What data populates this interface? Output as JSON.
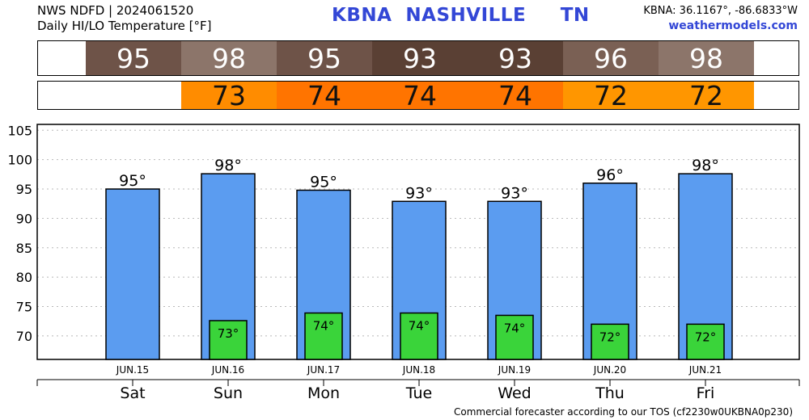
{
  "header": {
    "line1": "NWS NDFD | 2024061520",
    "line2": "Daily HI/LO Temperature [°F]",
    "station": "KBNA  NASHVILLE     TN",
    "coords": "KBNA: 36.1167°, -86.6833°W",
    "site": "weathermodels.com"
  },
  "footer": "Commercial forecaster according to our TOS (cf2230w0UKBNA0p230)",
  "hi_strip": [
    {
      "value": "95",
      "color": "#6e5348"
    },
    {
      "value": "98",
      "color": "#8c756a"
    },
    {
      "value": "95",
      "color": "#6e5348"
    },
    {
      "value": "93",
      "color": "#5a4034"
    },
    {
      "value": "93",
      "color": "#5a4034"
    },
    {
      "value": "96",
      "color": "#7a6054"
    },
    {
      "value": "98",
      "color": "#8c756a"
    }
  ],
  "lo_strip": [
    {
      "value": "",
      "color": "#ffffff"
    },
    {
      "value": "73",
      "color": "#ff8c00"
    },
    {
      "value": "74",
      "color": "#ff7400"
    },
    {
      "value": "74",
      "color": "#ff7400"
    },
    {
      "value": "74",
      "color": "#ff7400"
    },
    {
      "value": "72",
      "color": "#ff9600"
    },
    {
      "value": "72",
      "color": "#ff9600"
    }
  ],
  "chart_data": {
    "type": "bar",
    "categories": [
      "Sat",
      "Sun",
      "Mon",
      "Tue",
      "Wed",
      "Thu",
      "Fri"
    ],
    "dates": [
      "JUN.15",
      "JUN.16",
      "JUN.17",
      "JUN.18",
      "JUN.19",
      "JUN.20",
      "JUN.21"
    ],
    "series": [
      {
        "name": "HI",
        "values": [
          95,
          97.6,
          94.8,
          92.9,
          92.9,
          96,
          97.6
        ],
        "labels": [
          "95°",
          "98°",
          "95°",
          "93°",
          "93°",
          "96°",
          "98°"
        ],
        "color": "#5b9cf0"
      },
      {
        "name": "LO",
        "values": [
          null,
          72.6,
          73.9,
          73.9,
          73.5,
          72,
          72
        ],
        "labels": [
          "",
          "73°",
          "74°",
          "74°",
          "74°",
          "72°",
          "72°"
        ],
        "color": "#3ad43a"
      }
    ],
    "yticks": [
      70,
      75,
      80,
      85,
      90,
      95,
      100,
      105
    ],
    "ylim": [
      66,
      106
    ],
    "grid": true
  }
}
